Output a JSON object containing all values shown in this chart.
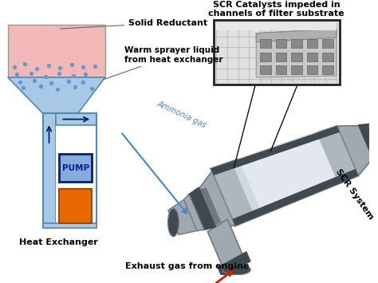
{
  "bg_color": "#ffffff",
  "labels": {
    "solid_reductant": "Solid Reductant",
    "warm_sprayer": "Warm sprayer liquid\nfrom heat exchanger",
    "ammonia_gas": "Ammonia gas",
    "heat_exchanger": "Heat Exchanger",
    "pump": "PUMP",
    "exhaust_gas": "Exhaust gas from engine",
    "scr_system": "SCR System",
    "scr_catalysts": "SCR Catalysts impeded in\nchannels of filter substrate"
  },
  "colors": {
    "hopper_pink": "#f2b8b8",
    "hopper_outline": "#999999",
    "funnel_blue": "#a8c8e8",
    "funnel_outline": "#5588aa",
    "pipe_blue": "#a8c8e8",
    "pipe_outline": "#5588aa",
    "pump_border": "#002266",
    "pump_fill": "#88aadd",
    "pump_label": "#002299",
    "heat_ex_fill": "#e86800",
    "heat_ex_border": "#aa4400",
    "scr_main": "#a0a8b0",
    "scr_light": "#d0d8e0",
    "scr_dark": "#707880",
    "scr_darkest": "#404850",
    "scr_white": "#e8edf0",
    "arrow_ammonia": "#4488cc",
    "arrow_exhaust": "#cc2200",
    "arrow_scr_out": "#cc6600",
    "dots_blue": "#6699cc",
    "text_color": "#000000",
    "label_line": "#222222",
    "inset_bg": "#e0e0e0",
    "inset_border": "#222222",
    "inset_light": "#f0f0f0",
    "inset_dark": "#888888"
  }
}
